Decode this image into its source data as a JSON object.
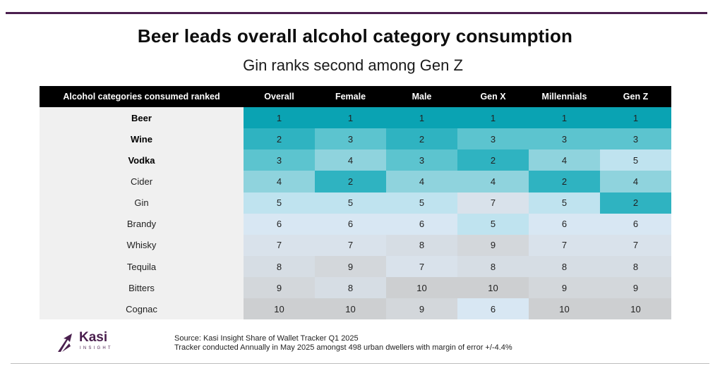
{
  "chart_data": {
    "type": "table",
    "title": "Beer leads overall alcohol category consumption",
    "subtitle": "Gin ranks second among Gen Z",
    "columns": [
      "Alcohol categories consumed ranked",
      "Overall",
      "Female",
      "Male",
      "Gen X",
      "Millennials",
      "Gen Z"
    ],
    "rows": [
      {
        "category": "Beer",
        "bold": true,
        "values": [
          1,
          1,
          1,
          1,
          1,
          1
        ]
      },
      {
        "category": "Wine",
        "bold": true,
        "values": [
          2,
          3,
          2,
          3,
          3,
          3
        ]
      },
      {
        "category": "Vodka",
        "bold": true,
        "values": [
          3,
          4,
          3,
          2,
          4,
          5
        ]
      },
      {
        "category": "Cider",
        "bold": false,
        "values": [
          4,
          2,
          4,
          4,
          2,
          4
        ]
      },
      {
        "category": "Gin",
        "bold": false,
        "values": [
          5,
          5,
          5,
          7,
          5,
          2
        ]
      },
      {
        "category": "Brandy",
        "bold": false,
        "values": [
          6,
          6,
          6,
          5,
          6,
          6
        ]
      },
      {
        "category": "Whisky",
        "bold": false,
        "values": [
          7,
          7,
          8,
          9,
          7,
          7
        ]
      },
      {
        "category": "Tequila",
        "bold": false,
        "values": [
          8,
          9,
          7,
          8,
          8,
          8
        ]
      },
      {
        "category": "Bitters",
        "bold": false,
        "values": [
          9,
          8,
          10,
          10,
          9,
          9
        ]
      },
      {
        "category": "Cognac",
        "bold": false,
        "values": [
          10,
          10,
          9,
          6,
          10,
          10
        ]
      }
    ],
    "rank_colors": {
      "1": "#0aa3b3",
      "2": "#2fb3c1",
      "3": "#5cc4cf",
      "4": "#8fd3dd",
      "5": "#bfe3ef",
      "6": "#d8e7f3",
      "7": "#d9e2eb",
      "8": "#d6dde4",
      "9": "#d3d7db",
      "10": "#cdcfd1"
    }
  },
  "brand": {
    "name": "Kasi",
    "tagline": "INSIGHT",
    "color": "#4a1f4e"
  },
  "footer": {
    "source_line1": "Source: Kasi Insight Share of Wallet Tracker Q1 2025",
    "source_line2": "Tracker conducted Annually in May 2025  amongst 498 urban dwellers with margin of error +/-4.4%"
  }
}
